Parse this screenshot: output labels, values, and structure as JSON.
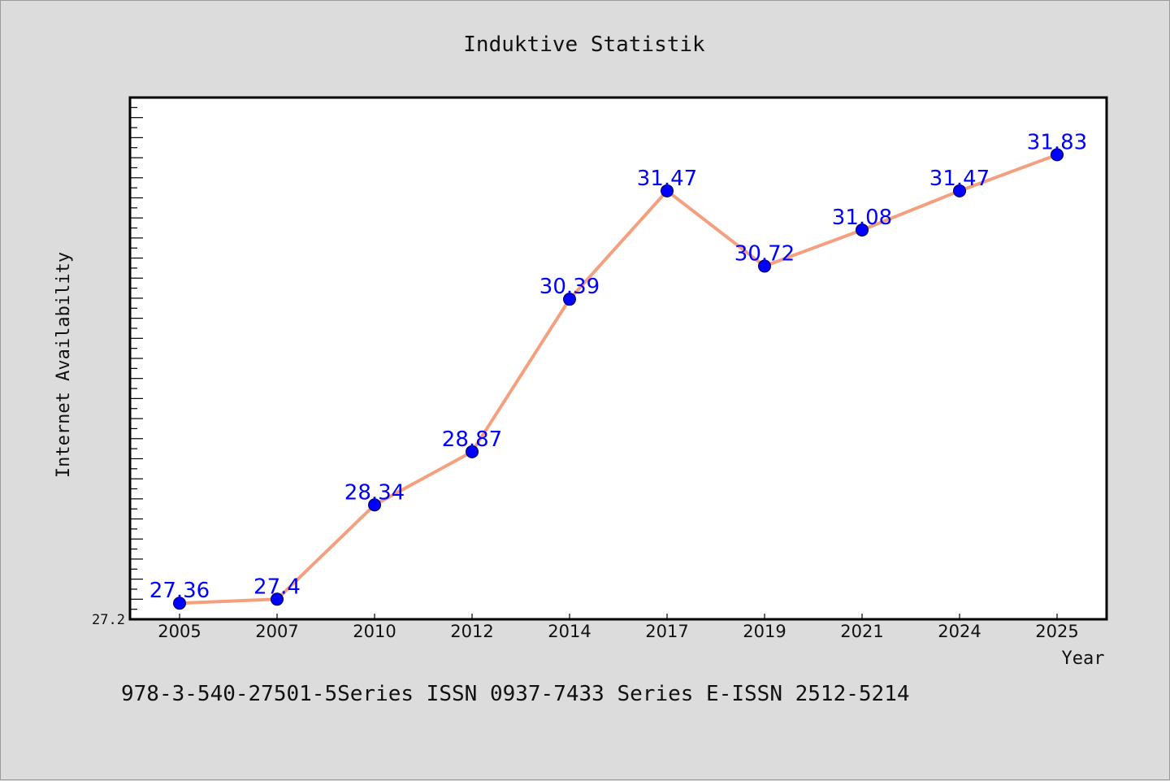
{
  "chart_data": {
    "type": "line",
    "title": "Induktive Statistik",
    "xlabel": "Year",
    "ylabel": "Internet Availability",
    "categories": [
      "2005",
      "2007",
      "2010",
      "2012",
      "2014",
      "2017",
      "2019",
      "2021",
      "2024",
      "2025"
    ],
    "series": [
      {
        "values": [
          27.36,
          27.4,
          28.34,
          28.87,
          30.39,
          31.47,
          30.72,
          31.08,
          31.47,
          31.83
        ],
        "data_labels": [
          "27.36",
          "27.4",
          "28.34",
          "28.87",
          "30.39",
          "31.47",
          "30.72",
          "31.08",
          "31.47",
          "31.83"
        ]
      }
    ],
    "ylim": [
      27.2,
      32.4
    ],
    "y_tick_labels": [
      "27.2"
    ],
    "grid": false,
    "line_color": "#f4a07e",
    "marker_color": "#0000ff",
    "data_label_color": "#0000ff",
    "background_color": "#dcdcdc",
    "plot_background_color": "#ffffff"
  },
  "footer": {
    "text": "978-3-540-27501-5Series ISSN 0937-7433 Series E-ISSN 2512-5214"
  }
}
